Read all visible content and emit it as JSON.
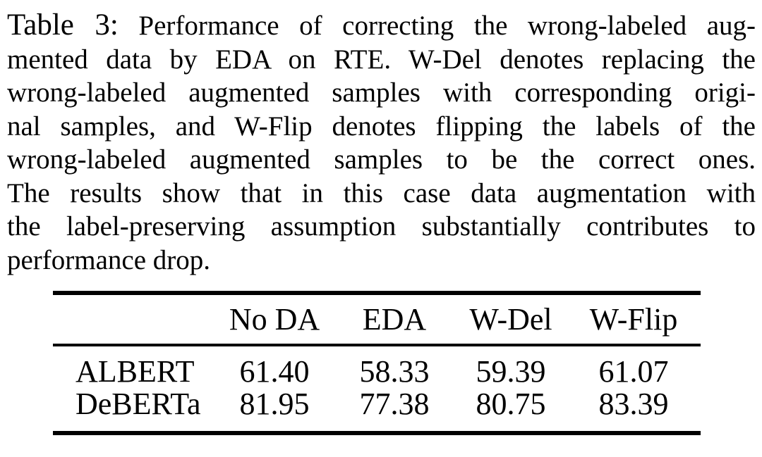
{
  "caption": {
    "label": "Table 3:",
    "lines": [
      "Performance of correcting the wrong-labeled aug-",
      "mented data by EDA on RTE. W-Del denotes replacing the",
      "wrong-labeled augmented samples with corresponding origi-",
      "nal samples, and W-Flip denotes flipping the labels of the",
      "wrong-labeled augmented samples to be the correct ones.",
      "The results show that in this case data augmentation with",
      "the label-preserving assumption substantially contributes to",
      "performance drop."
    ]
  },
  "table": {
    "columns": [
      "",
      "No DA",
      "EDA",
      "W-Del",
      "W-Flip"
    ],
    "rows": [
      {
        "model": "ALBERT",
        "values": [
          "61.40",
          "58.33",
          "59.39",
          "61.07"
        ]
      },
      {
        "model": "DeBERTa",
        "values": [
          "81.95",
          "77.38",
          "80.75",
          "83.39"
        ]
      }
    ]
  },
  "colors": {
    "text": "#000000",
    "background": "#ffffff",
    "rule": "#000000"
  }
}
